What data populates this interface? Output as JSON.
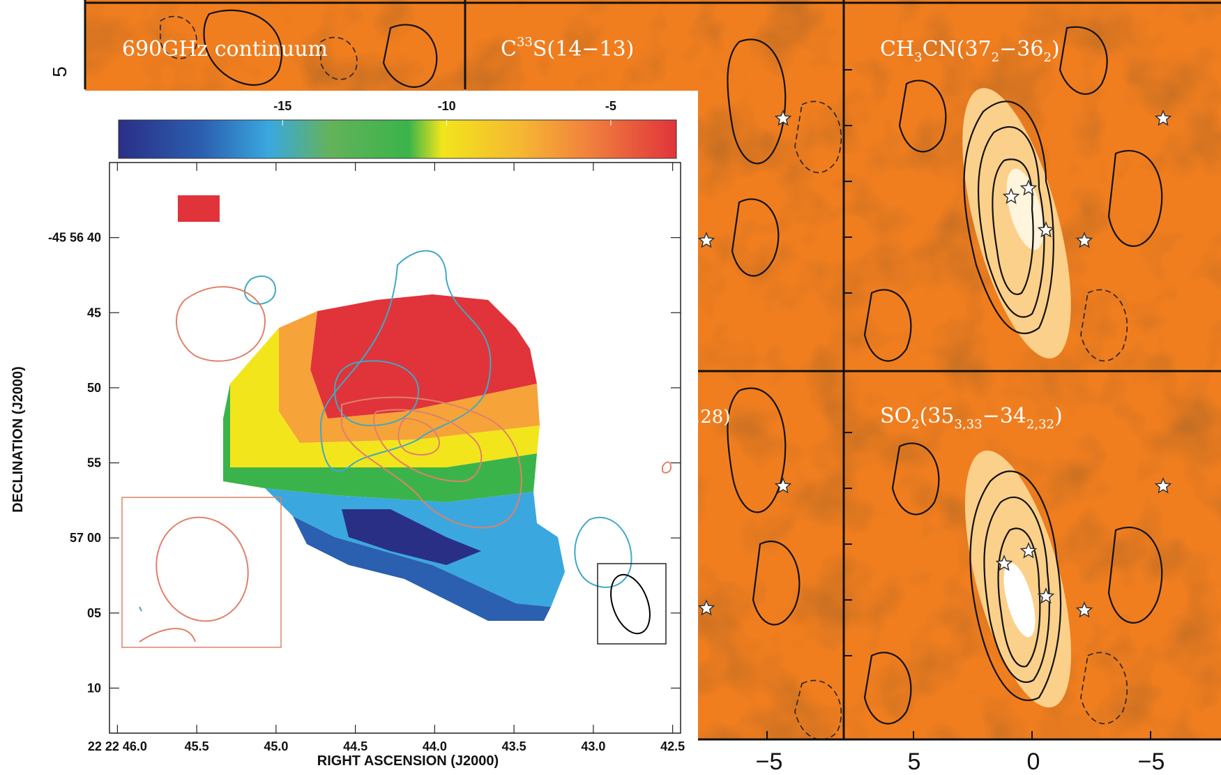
{
  "background_panels": {
    "panel_labels": [
      {
        "prefix": "690GHz continuum",
        "sub": "",
        "sup": "",
        "rest": ""
      },
      {
        "prefix": "C",
        "sup": "33",
        "rest": "S(14−13)",
        "sub": ""
      },
      {
        "prefix": "CH",
        "sub": "3",
        "rest": "CN(37",
        "sub2": "2",
        "rest2": "−36",
        "sub3": "2",
        "end": ")"
      },
      {
        "prefix": "SO",
        "sub": "2",
        "rest": "(35",
        "sub2": "3,33",
        "rest2": "−34",
        "sub3": "2,32",
        "end": ")"
      },
      {
        "partial": ",28)"
      }
    ],
    "left_tick_label": "5",
    "bottom_tick_labels": [
      "−5",
      "5",
      "0",
      "−5"
    ],
    "colors": {
      "background": "#f07e1f",
      "contour": "#111111",
      "star": "#ffffff"
    }
  },
  "inset": {
    "colorbar": {
      "tick_labels": [
        "-15",
        "-10",
        "-5"
      ],
      "range": [
        -20,
        -3
      ],
      "colors": [
        "#2a2f86",
        "#2b5fb0",
        "#3aa8df",
        "#64b25a",
        "#3ab44a",
        "#f2e51c",
        "#f6b732",
        "#f07e3e",
        "#e0343a"
      ]
    },
    "chart_data": {
      "type": "heatmap",
      "title": "",
      "xlabel": "RIGHT ASCENSION (J2000)",
      "ylabel": "DECLINATION (J2000)",
      "x_tick_labels": [
        "22 22 46.0",
        "45.5",
        "45.0",
        "44.5",
        "44.0",
        "43.5",
        "43.0",
        "42.5"
      ],
      "x_ticks_sec": [
        46.0,
        45.5,
        45.0,
        44.5,
        44.0,
        43.5,
        43.0,
        42.5
      ],
      "y_tick_labels": [
        "-45 56 40",
        "45",
        "50",
        "55",
        "57 00",
        "05",
        "10"
      ],
      "y_ticks_offset_arcsec": [
        40,
        45,
        50,
        55,
        60,
        65,
        70
      ],
      "xlim_sec": [
        46.05,
        42.45
      ],
      "ylim_offset_arcsec": [
        35,
        73
      ],
      "colorbar_range": [
        -20,
        -3
      ],
      "velocity_field": {
        "red_region_value": -3,
        "green_boundary_value": -12,
        "blue_region_value": -19
      },
      "contour_colors": {
        "cyan": "#3fa9c5",
        "salmon": "#e0806a",
        "black": "#000000"
      }
    }
  }
}
